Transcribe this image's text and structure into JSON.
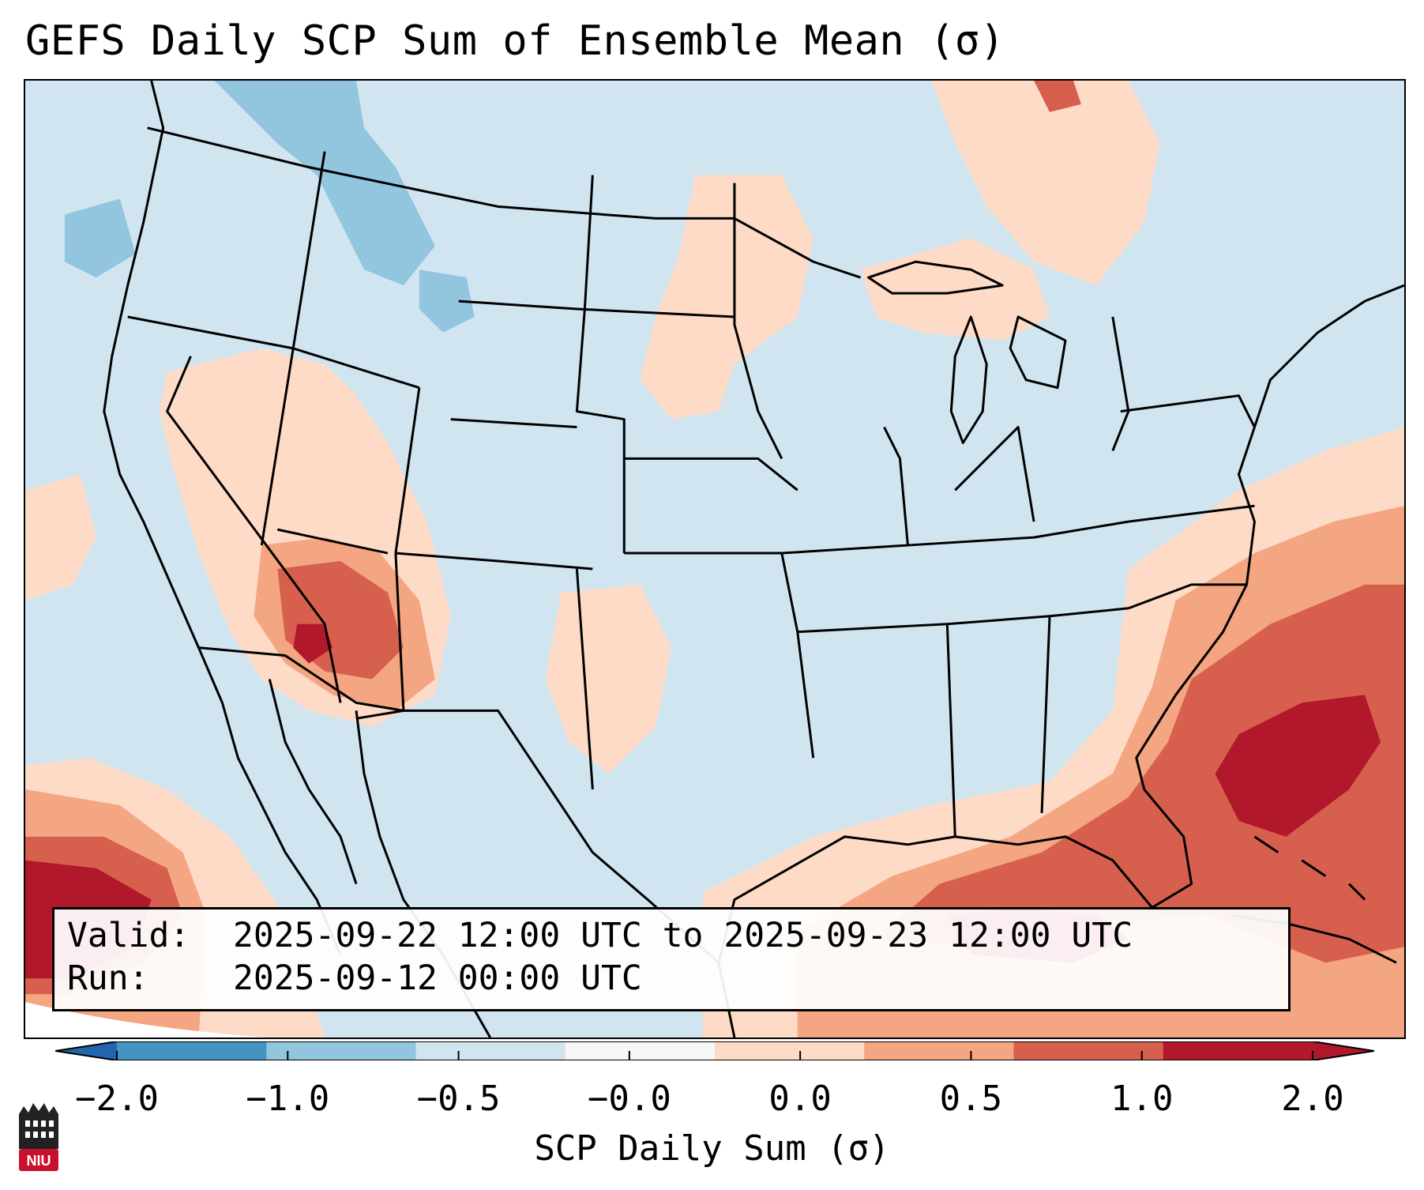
{
  "title": "GEFS Daily SCP Sum of Ensemble Mean (σ)",
  "info": {
    "valid_label": "Valid:",
    "valid_value": "2025-09-22 12:00 UTC to 2025-09-23 12:00 UTC",
    "run_label": "Run:",
    "run_value": "2025-09-12 00:00 UTC"
  },
  "colorbar": {
    "label": "SCP Daily Sum (σ)",
    "ticks": [
      "−2.0",
      "−1.0",
      "−0.5",
      "−0.0",
      "0.0",
      "0.5",
      "1.0",
      "2.0"
    ],
    "colors": [
      "#4393c3",
      "#92c5de",
      "#d1e5f0",
      "#f7f7f7",
      "#fddbc7",
      "#f4a582",
      "#d6604d",
      "#b2182b"
    ],
    "under_color": "#2166ac",
    "over_color": "#b2182b"
  },
  "map": {
    "land_color": "#d1e5f0",
    "boundary_color": "#000000"
  },
  "logo": {
    "text": "NIU",
    "color": "#c8102e"
  }
}
